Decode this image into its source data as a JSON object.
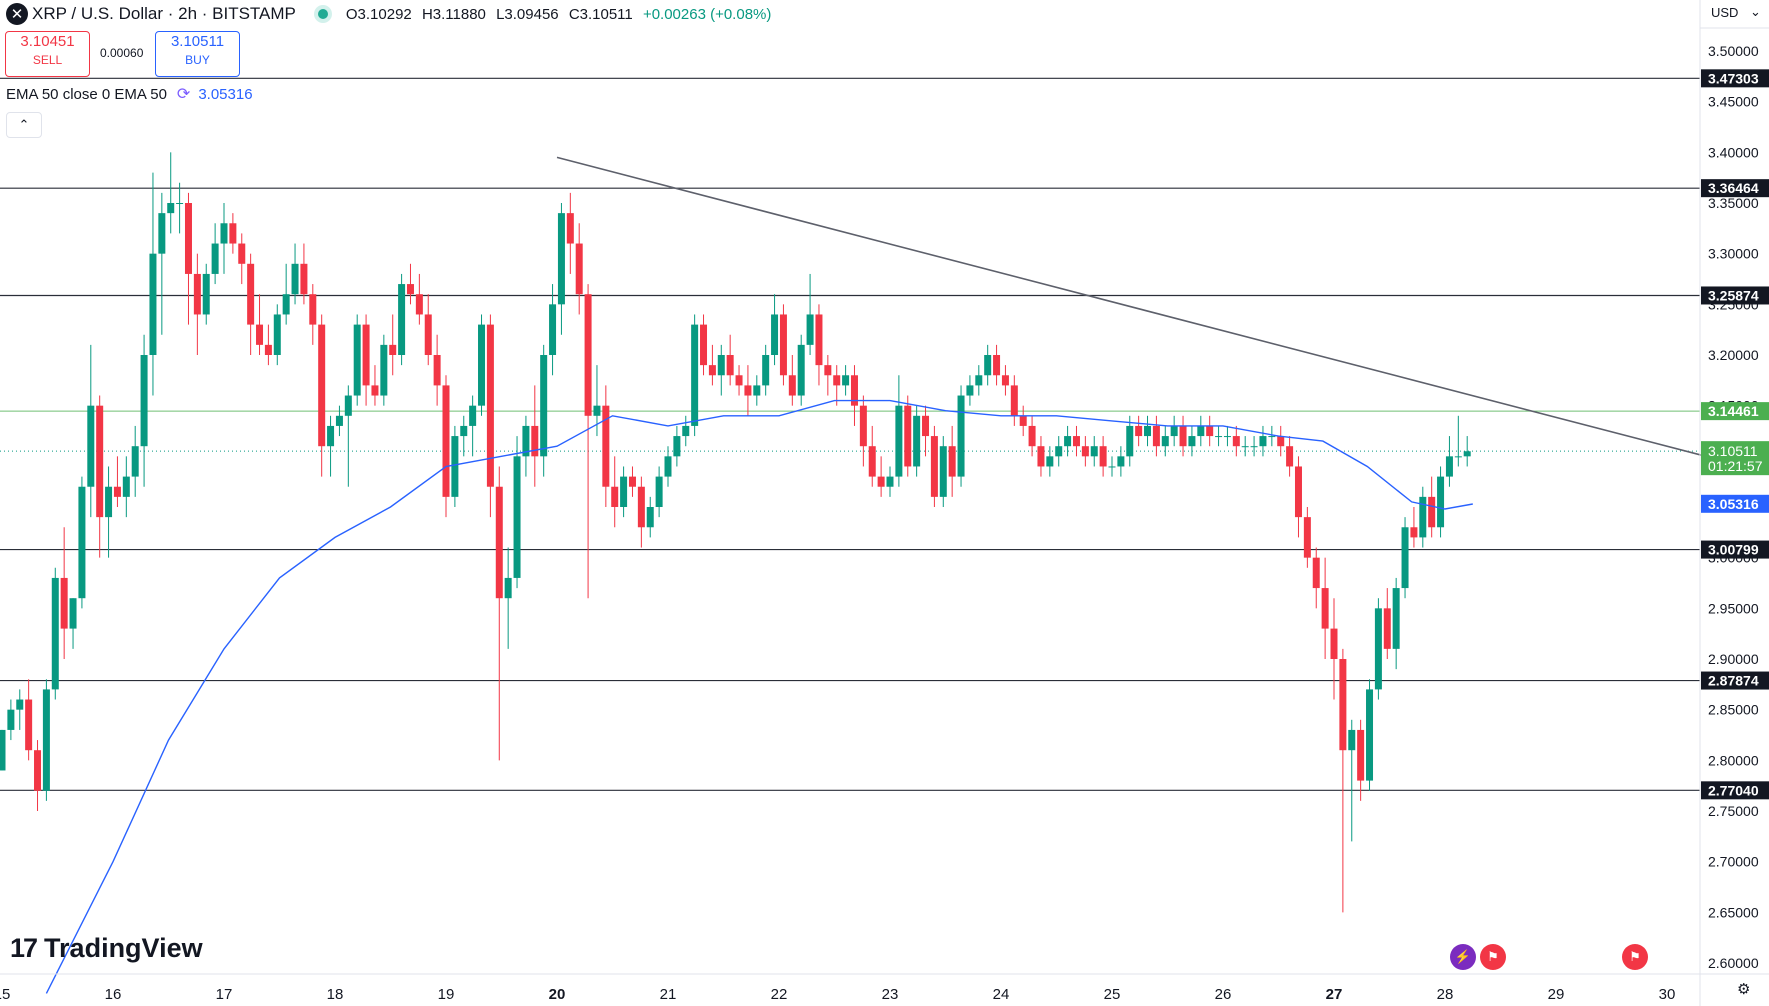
{
  "header": {
    "symbol_icon": "x-icon",
    "title": "XRP / U.S. Dollar · 2h · BITSTAMP",
    "open": "O3.10292",
    "high": "H3.11880",
    "low": "L3.09456",
    "close": "C3.10511",
    "change": "+0.00263 (+0.08%)"
  },
  "trade": {
    "sell_price": "3.10451",
    "sell_label": "SELL",
    "spread": "0.00060",
    "buy_price": "3.10511",
    "buy_label": "BUY"
  },
  "indicator": {
    "label": "EMA 50 close 0 EMA 50",
    "value": "3.05316"
  },
  "currency": "USD",
  "brand": "TradingView",
  "colors": {
    "up": "#089981",
    "down": "#f23645",
    "ema": "#2962ff",
    "line": "#131722",
    "support_green": "#4caf50"
  },
  "chart_data": {
    "type": "candlestick",
    "title": "XRP / U.S. Dollar · 2h · BITSTAMP",
    "ylim": [
      2.575,
      3.535
    ],
    "y_ticks": [
      "2.60000",
      "2.65000",
      "2.70000",
      "2.75000",
      "2.80000",
      "2.85000",
      "2.90000",
      "2.95000",
      "3.00000",
      "3.05000",
      "3.10000",
      "3.15000",
      "3.20000",
      "3.25000",
      "3.30000",
      "3.35000",
      "3.40000",
      "3.45000",
      "3.50000"
    ],
    "x_labels": [
      {
        "label": "15",
        "day": 15
      },
      {
        "label": "16",
        "day": 16
      },
      {
        "label": "17",
        "day": 17
      },
      {
        "label": "18",
        "day": 18
      },
      {
        "label": "19",
        "day": 19
      },
      {
        "label": "20",
        "day": 20
      },
      {
        "label": "21",
        "day": 21
      },
      {
        "label": "22",
        "day": 22
      },
      {
        "label": "23",
        "day": 23
      },
      {
        "label": "24",
        "day": 24
      },
      {
        "label": "25",
        "day": 25
      },
      {
        "label": "26",
        "day": 26
      },
      {
        "label": "27",
        "day": 27
      },
      {
        "label": "28",
        "day": 28
      },
      {
        "label": "29",
        "day": 29
      },
      {
        "label": "30",
        "day": 30
      }
    ],
    "bold_days": [
      "20",
      "27"
    ],
    "horizontal_levels": [
      {
        "value": 3.47303,
        "label": "3.47303",
        "style": "black"
      },
      {
        "value": 3.36464,
        "label": "3.36464",
        "style": "black"
      },
      {
        "value": 3.25874,
        "label": "3.25874",
        "style": "black"
      },
      {
        "value": 3.14461,
        "label": "3.14461",
        "style": "green"
      },
      {
        "value": 3.00799,
        "label": "3.00799",
        "style": "black"
      },
      {
        "value": 2.87874,
        "label": "2.87874",
        "style": "black"
      },
      {
        "value": 2.7704,
        "label": "2.77040",
        "style": "black"
      }
    ],
    "price_label": {
      "value": 3.10511,
      "label": "3.10511",
      "countdown": "01:21:57"
    },
    "ema_label": {
      "value": 3.05316,
      "label": "3.05316"
    },
    "trendline": [
      [
        20.0,
        3.395
      ],
      [
        30.35,
        3.1
      ]
    ],
    "ema_series": [
      [
        15.4,
        2.57
      ],
      [
        16.0,
        2.7
      ],
      [
        16.5,
        2.82
      ],
      [
        17.0,
        2.91
      ],
      [
        17.5,
        2.98
      ],
      [
        18.0,
        3.02
      ],
      [
        18.5,
        3.05
      ],
      [
        19.0,
        3.09
      ],
      [
        19.5,
        3.1
      ],
      [
        20.0,
        3.11
      ],
      [
        20.5,
        3.14
      ],
      [
        21.0,
        3.13
      ],
      [
        21.5,
        3.14
      ],
      [
        22.0,
        3.14
      ],
      [
        22.5,
        3.155
      ],
      [
        23.0,
        3.155
      ],
      [
        23.5,
        3.145
      ],
      [
        24.0,
        3.14
      ],
      [
        24.5,
        3.14
      ],
      [
        25.0,
        3.135
      ],
      [
        25.5,
        3.13
      ],
      [
        26.0,
        3.13
      ],
      [
        26.5,
        3.12
      ],
      [
        26.9,
        3.115
      ],
      [
        27.3,
        3.09
      ],
      [
        27.7,
        3.055
      ],
      [
        28.0,
        3.048
      ],
      [
        28.25,
        3.053
      ]
    ],
    "candles_ohlc": [
      [
        15.0,
        2.79,
        2.83,
        2.79,
        2.83
      ],
      [
        15.08,
        2.83,
        2.86,
        2.82,
        2.85
      ],
      [
        15.16,
        2.85,
        2.87,
        2.83,
        2.86
      ],
      [
        15.24,
        2.86,
        2.88,
        2.8,
        2.81
      ],
      [
        15.32,
        2.81,
        2.82,
        2.75,
        2.77
      ],
      [
        15.4,
        2.77,
        2.88,
        2.76,
        2.87
      ],
      [
        15.48,
        2.87,
        2.99,
        2.86,
        2.98
      ],
      [
        15.56,
        2.98,
        3.03,
        2.9,
        2.93
      ],
      [
        15.64,
        2.93,
        2.96,
        2.91,
        2.96
      ],
      [
        15.72,
        2.96,
        3.08,
        2.95,
        3.07
      ],
      [
        15.8,
        3.07,
        3.21,
        3.04,
        3.15
      ],
      [
        15.88,
        3.15,
        3.16,
        3.0,
        3.04
      ],
      [
        15.96,
        3.04,
        3.09,
        3.0,
        3.07
      ],
      [
        16.04,
        3.07,
        3.1,
        3.05,
        3.06
      ],
      [
        16.12,
        3.06,
        3.1,
        3.04,
        3.08
      ],
      [
        16.2,
        3.08,
        3.13,
        3.06,
        3.11
      ],
      [
        16.28,
        3.11,
        3.22,
        3.07,
        3.2
      ],
      [
        16.36,
        3.2,
        3.38,
        3.16,
        3.3
      ],
      [
        16.44,
        3.3,
        3.36,
        3.22,
        3.34
      ],
      [
        16.52,
        3.34,
        3.4,
        3.32,
        3.35
      ],
      [
        16.6,
        3.35,
        3.37,
        3.32,
        3.35
      ],
      [
        16.68,
        3.35,
        3.36,
        3.23,
        3.28
      ],
      [
        16.76,
        3.28,
        3.3,
        3.2,
        3.24
      ],
      [
        16.84,
        3.24,
        3.29,
        3.23,
        3.28
      ],
      [
        16.92,
        3.28,
        3.33,
        3.27,
        3.31
      ],
      [
        17.0,
        3.31,
        3.35,
        3.28,
        3.33
      ],
      [
        17.08,
        3.33,
        3.34,
        3.3,
        3.31
      ],
      [
        17.16,
        3.31,
        3.32,
        3.27,
        3.29
      ],
      [
        17.24,
        3.29,
        3.3,
        3.2,
        3.23
      ],
      [
        17.32,
        3.23,
        3.26,
        3.2,
        3.21
      ],
      [
        17.4,
        3.21,
        3.23,
        3.19,
        3.2
      ],
      [
        17.48,
        3.2,
        3.25,
        3.19,
        3.24
      ],
      [
        17.56,
        3.24,
        3.29,
        3.23,
        3.26
      ],
      [
        17.64,
        3.26,
        3.31,
        3.25,
        3.29
      ],
      [
        17.72,
        3.29,
        3.31,
        3.25,
        3.26
      ],
      [
        17.8,
        3.26,
        3.27,
        3.21,
        3.23
      ],
      [
        17.88,
        3.23,
        3.24,
        3.08,
        3.11
      ],
      [
        17.96,
        3.11,
        3.14,
        3.08,
        3.13
      ],
      [
        18.04,
        3.13,
        3.15,
        3.12,
        3.14
      ],
      [
        18.12,
        3.14,
        3.17,
        3.07,
        3.16
      ],
      [
        18.2,
        3.16,
        3.24,
        3.15,
        3.23
      ],
      [
        18.28,
        3.23,
        3.24,
        3.15,
        3.17
      ],
      [
        18.36,
        3.17,
        3.19,
        3.15,
        3.16
      ],
      [
        18.44,
        3.16,
        3.22,
        3.15,
        3.21
      ],
      [
        18.52,
        3.21,
        3.24,
        3.18,
        3.2
      ],
      [
        18.6,
        3.2,
        3.28,
        3.19,
        3.27
      ],
      [
        18.68,
        3.27,
        3.29,
        3.25,
        3.26
      ],
      [
        18.76,
        3.26,
        3.28,
        3.23,
        3.24
      ],
      [
        18.84,
        3.24,
        3.26,
        3.19,
        3.2
      ],
      [
        18.92,
        3.2,
        3.22,
        3.15,
        3.17
      ],
      [
        19.0,
        3.17,
        3.18,
        3.04,
        3.06
      ],
      [
        19.08,
        3.06,
        3.13,
        3.05,
        3.12
      ],
      [
        19.16,
        3.12,
        3.14,
        3.1,
        3.13
      ],
      [
        19.24,
        3.13,
        3.16,
        3.1,
        3.15
      ],
      [
        19.32,
        3.15,
        3.24,
        3.14,
        3.23
      ],
      [
        19.4,
        3.23,
        3.24,
        3.04,
        3.07
      ],
      [
        19.48,
        3.07,
        3.09,
        2.8,
        2.96
      ],
      [
        19.56,
        2.96,
        3.01,
        2.91,
        2.98
      ],
      [
        19.64,
        2.98,
        3.12,
        2.97,
        3.1
      ],
      [
        19.72,
        3.1,
        3.14,
        3.08,
        3.13
      ],
      [
        19.8,
        3.13,
        3.17,
        3.07,
        3.1
      ],
      [
        19.88,
        3.1,
        3.21,
        3.08,
        3.2
      ],
      [
        19.96,
        3.2,
        3.27,
        3.18,
        3.25
      ],
      [
        20.04,
        3.25,
        3.35,
        3.22,
        3.34
      ],
      [
        20.12,
        3.34,
        3.36,
        3.28,
        3.31
      ],
      [
        20.2,
        3.31,
        3.33,
        3.24,
        3.26
      ],
      [
        20.28,
        3.26,
        3.27,
        2.96,
        3.14
      ],
      [
        20.36,
        3.14,
        3.19,
        3.12,
        3.15
      ],
      [
        20.44,
        3.15,
        3.17,
        3.05,
        3.07
      ],
      [
        20.52,
        3.07,
        3.1,
        3.03,
        3.05
      ],
      [
        20.6,
        3.05,
        3.09,
        3.04,
        3.08
      ],
      [
        20.68,
        3.08,
        3.09,
        3.06,
        3.07
      ],
      [
        20.76,
        3.07,
        3.08,
        3.01,
        3.03
      ],
      [
        20.84,
        3.03,
        3.06,
        3.02,
        3.05
      ],
      [
        20.92,
        3.05,
        3.09,
        3.04,
        3.08
      ],
      [
        21.0,
        3.08,
        3.11,
        3.07,
        3.1
      ],
      [
        21.08,
        3.1,
        3.13,
        3.09,
        3.12
      ],
      [
        21.16,
        3.12,
        3.14,
        3.11,
        3.13
      ],
      [
        21.24,
        3.13,
        3.24,
        3.12,
        3.23
      ],
      [
        21.32,
        3.23,
        3.24,
        3.18,
        3.19
      ],
      [
        21.4,
        3.19,
        3.21,
        3.17,
        3.18
      ],
      [
        21.48,
        3.18,
        3.21,
        3.16,
        3.2
      ],
      [
        21.56,
        3.2,
        3.22,
        3.17,
        3.18
      ],
      [
        21.64,
        3.18,
        3.19,
        3.16,
        3.17
      ],
      [
        21.72,
        3.17,
        3.19,
        3.14,
        3.16
      ],
      [
        21.8,
        3.16,
        3.18,
        3.15,
        3.17
      ],
      [
        21.88,
        3.17,
        3.21,
        3.16,
        3.2
      ],
      [
        21.96,
        3.2,
        3.26,
        3.19,
        3.24
      ],
      [
        22.04,
        3.24,
        3.25,
        3.17,
        3.18
      ],
      [
        22.12,
        3.18,
        3.2,
        3.15,
        3.16
      ],
      [
        22.2,
        3.16,
        3.22,
        3.15,
        3.21
      ],
      [
        22.28,
        3.21,
        3.28,
        3.2,
        3.24
      ],
      [
        22.36,
        3.24,
        3.25,
        3.17,
        3.19
      ],
      [
        22.44,
        3.19,
        3.2,
        3.16,
        3.18
      ],
      [
        22.52,
        3.18,
        3.19,
        3.15,
        3.17
      ],
      [
        22.6,
        3.17,
        3.19,
        3.16,
        3.18
      ],
      [
        22.68,
        3.18,
        3.19,
        3.13,
        3.15
      ],
      [
        22.76,
        3.15,
        3.16,
        3.09,
        3.11
      ],
      [
        22.84,
        3.11,
        3.13,
        3.07,
        3.08
      ],
      [
        22.92,
        3.08,
        3.1,
        3.06,
        3.07
      ],
      [
        23.0,
        3.07,
        3.09,
        3.06,
        3.08
      ],
      [
        23.08,
        3.08,
        3.18,
        3.07,
        3.15
      ],
      [
        23.16,
        3.15,
        3.16,
        3.08,
        3.09
      ],
      [
        23.24,
        3.09,
        3.15,
        3.08,
        3.14
      ],
      [
        23.32,
        3.14,
        3.15,
        3.1,
        3.12
      ],
      [
        23.4,
        3.12,
        3.13,
        3.05,
        3.06
      ],
      [
        23.48,
        3.06,
        3.12,
        3.05,
        3.11
      ],
      [
        23.56,
        3.11,
        3.13,
        3.06,
        3.08
      ],
      [
        23.64,
        3.08,
        3.17,
        3.07,
        3.16
      ],
      [
        23.72,
        3.16,
        3.18,
        3.15,
        3.17
      ],
      [
        23.8,
        3.17,
        3.19,
        3.16,
        3.18
      ],
      [
        23.88,
        3.18,
        3.21,
        3.17,
        3.2
      ],
      [
        23.96,
        3.2,
        3.21,
        3.17,
        3.18
      ],
      [
        24.04,
        3.18,
        3.19,
        3.16,
        3.17
      ],
      [
        24.12,
        3.17,
        3.18,
        3.13,
        3.14
      ],
      [
        24.2,
        3.14,
        3.15,
        3.12,
        3.13
      ],
      [
        24.28,
        3.13,
        3.14,
        3.1,
        3.11
      ],
      [
        24.36,
        3.11,
        3.12,
        3.08,
        3.09
      ],
      [
        24.44,
        3.09,
        3.11,
        3.08,
        3.1
      ],
      [
        24.52,
        3.1,
        3.12,
        3.09,
        3.11
      ],
      [
        24.6,
        3.11,
        3.13,
        3.1,
        3.12
      ],
      [
        24.68,
        3.12,
        3.13,
        3.1,
        3.11
      ],
      [
        24.76,
        3.11,
        3.12,
        3.09,
        3.1
      ],
      [
        24.84,
        3.1,
        3.12,
        3.09,
        3.11
      ],
      [
        24.92,
        3.11,
        3.12,
        3.08,
        3.09
      ],
      [
        25.0,
        3.09,
        3.1,
        3.08,
        3.09
      ],
      [
        25.08,
        3.09,
        3.11,
        3.08,
        3.1
      ],
      [
        25.16,
        3.1,
        3.14,
        3.09,
        3.13
      ],
      [
        25.24,
        3.13,
        3.14,
        3.11,
        3.12
      ],
      [
        25.32,
        3.12,
        3.14,
        3.11,
        3.13
      ],
      [
        25.4,
        3.13,
        3.14,
        3.1,
        3.11
      ],
      [
        25.48,
        3.11,
        3.13,
        3.1,
        3.12
      ],
      [
        25.56,
        3.12,
        3.14,
        3.11,
        3.13
      ],
      [
        25.64,
        3.13,
        3.14,
        3.1,
        3.11
      ],
      [
        25.72,
        3.11,
        3.13,
        3.1,
        3.12
      ],
      [
        25.8,
        3.12,
        3.14,
        3.11,
        3.13
      ],
      [
        25.88,
        3.13,
        3.14,
        3.11,
        3.12
      ],
      [
        25.96,
        3.12,
        3.13,
        3.11,
        3.12
      ],
      [
        26.04,
        3.12,
        3.13,
        3.11,
        3.12
      ],
      [
        26.12,
        3.12,
        3.13,
        3.1,
        3.11
      ],
      [
        26.2,
        3.11,
        3.12,
        3.1,
        3.11
      ],
      [
        26.28,
        3.11,
        3.12,
        3.1,
        3.11
      ],
      [
        26.36,
        3.11,
        3.13,
        3.1,
        3.12
      ],
      [
        26.44,
        3.12,
        3.13,
        3.11,
        3.12
      ],
      [
        26.52,
        3.12,
        3.13,
        3.1,
        3.11
      ],
      [
        26.6,
        3.11,
        3.12,
        3.08,
        3.09
      ],
      [
        26.68,
        3.09,
        3.1,
        3.02,
        3.04
      ],
      [
        26.76,
        3.04,
        3.05,
        2.99,
        3.0
      ],
      [
        26.84,
        3.0,
        3.01,
        2.95,
        2.97
      ],
      [
        26.92,
        2.97,
        3.0,
        2.9,
        2.93
      ],
      [
        27.0,
        2.93,
        2.96,
        2.86,
        2.9
      ],
      [
        27.08,
        2.9,
        2.91,
        2.65,
        2.81
      ],
      [
        27.16,
        2.81,
        2.84,
        2.72,
        2.83
      ],
      [
        27.24,
        2.83,
        2.84,
        2.76,
        2.78
      ],
      [
        27.32,
        2.78,
        2.88,
        2.77,
        2.87
      ],
      [
        27.4,
        2.87,
        2.96,
        2.86,
        2.95
      ],
      [
        27.48,
        2.95,
        2.97,
        2.9,
        2.91
      ],
      [
        27.56,
        2.91,
        2.98,
        2.89,
        2.97
      ],
      [
        27.64,
        2.97,
        3.04,
        2.96,
        3.03
      ],
      [
        27.72,
        3.03,
        3.05,
        3.01,
        3.02
      ],
      [
        27.8,
        3.02,
        3.07,
        3.01,
        3.06
      ],
      [
        27.88,
        3.06,
        3.08,
        3.02,
        3.03
      ],
      [
        27.96,
        3.03,
        3.09,
        3.02,
        3.08
      ],
      [
        28.04,
        3.08,
        3.12,
        3.07,
        3.1
      ],
      [
        28.12,
        3.1,
        3.14,
        3.09,
        3.1
      ],
      [
        28.2,
        3.1,
        3.12,
        3.09,
        3.105
      ]
    ]
  }
}
